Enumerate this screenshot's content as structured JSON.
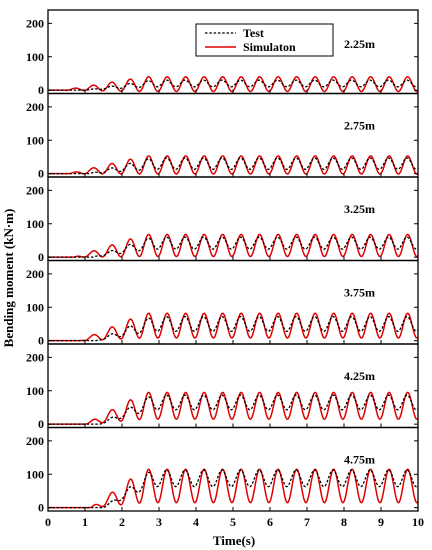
{
  "chart_data": {
    "type": "line",
    "xlabel": "Time(s)",
    "ylabel": "Bending moment (kN·m)",
    "xlim": [
      0,
      10
    ],
    "ylim": [
      -10,
      240
    ],
    "x_ticks": [
      0,
      1,
      2,
      3,
      4,
      5,
      6,
      7,
      8,
      9,
      10
    ],
    "y_ticks": [
      0,
      100,
      200
    ],
    "legend": {
      "position": "top-center",
      "entries": [
        {
          "name": "Test",
          "color": "#000000",
          "style": "dashed"
        },
        {
          "name": "Simulaton",
          "color": "#e00000",
          "style": "solid"
        }
      ]
    },
    "panels": [
      {
        "label": "2.25m",
        "test_mean": 20,
        "test_amp": 10,
        "sim_mean": 18,
        "sim_amp": 22
      },
      {
        "label": "2.75m",
        "test_mean": 30,
        "test_amp": 17,
        "sim_mean": 26,
        "sim_amp": 27
      },
      {
        "label": "3.25m",
        "test_mean": 42,
        "test_amp": 18,
        "sim_mean": 35,
        "sim_amp": 33
      },
      {
        "label": "3.75m",
        "test_mean": 50,
        "test_amp": 22,
        "sim_mean": 45,
        "sim_amp": 37
      },
      {
        "label": "4.25m",
        "test_mean": 65,
        "test_amp": 22,
        "sim_mean": 55,
        "sim_amp": 40
      },
      {
        "label": "4.75m",
        "test_mean": 88,
        "test_amp": 25,
        "sim_mean": 65,
        "sim_amp": 50
      }
    ],
    "period_s": 0.5
  },
  "colors": {
    "simulation": "#e00000",
    "test": "#000000"
  }
}
